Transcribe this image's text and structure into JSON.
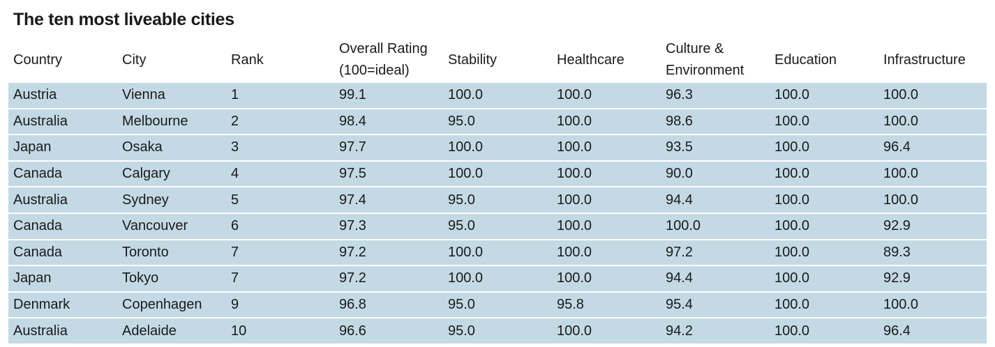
{
  "title": "The ten most liveable cities",
  "table": {
    "headers": [
      [
        "Country"
      ],
      [
        "City"
      ],
      [
        "Rank"
      ],
      [
        "Overall Rating",
        "(100=ideal)"
      ],
      [
        "Stability"
      ],
      [
        "Healthcare"
      ],
      [
        "Culture &",
        "Environment"
      ],
      [
        "Education"
      ],
      [
        "Infrastructure"
      ]
    ],
    "rows": [
      [
        "Austria",
        "Vienna",
        "1",
        "99.1",
        "100.0",
        "100.0",
        "96.3",
        "100.0",
        "100.0"
      ],
      [
        "Australia",
        "Melbourne",
        "2",
        "98.4",
        "95.0",
        "100.0",
        "98.6",
        "100.0",
        "100.0"
      ],
      [
        "Japan",
        "Osaka",
        "3",
        "97.7",
        "100.0",
        "100.0",
        "93.5",
        "100.0",
        "96.4"
      ],
      [
        "Canada",
        "Calgary",
        "4",
        "97.5",
        "100.0",
        "100.0",
        "90.0",
        "100.0",
        "100.0"
      ],
      [
        "Australia",
        "Sydney",
        "5",
        "97.4",
        "95.0",
        "100.0",
        "94.4",
        "100.0",
        "100.0"
      ],
      [
        "Canada",
        "Vancouver",
        "6",
        "97.3",
        "95.0",
        "100.0",
        "100.0",
        "100.0",
        "92.9"
      ],
      [
        "Canada",
        "Toronto",
        "7",
        "97.2",
        "100.0",
        "100.0",
        "97.2",
        "100.0",
        "89.3"
      ],
      [
        "Japan",
        "Tokyo",
        "7",
        "97.2",
        "100.0",
        "100.0",
        "94.4",
        "100.0",
        "92.9"
      ],
      [
        "Denmark",
        "Copenhagen",
        "9",
        "96.8",
        "95.0",
        "95.8",
        "95.4",
        "100.0",
        "100.0"
      ],
      [
        "Australia",
        "Adelaide",
        "10",
        "96.6",
        "95.0",
        "100.0",
        "94.2",
        "100.0",
        "96.4"
      ]
    ]
  },
  "colors": {
    "row_background": "#c3dae5",
    "row_separator": "#ffffff",
    "text": "#1a1a1a"
  }
}
